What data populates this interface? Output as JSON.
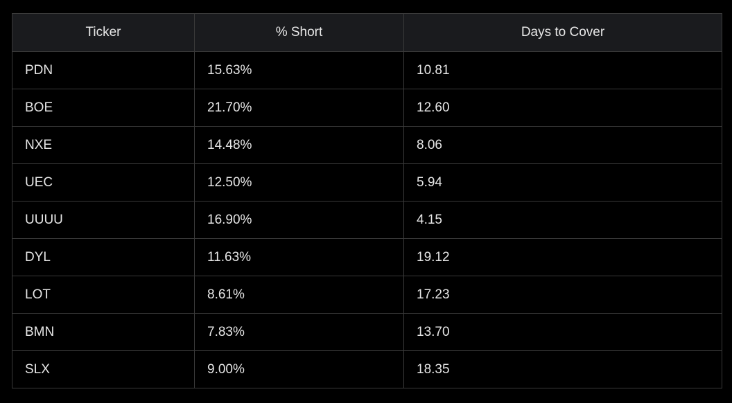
{
  "table": {
    "headers": [
      "Ticker",
      "% Short",
      "Days to Cover"
    ],
    "rows": [
      [
        "PDN",
        "15.63%",
        "10.81"
      ],
      [
        "BOE",
        "21.70%",
        "12.60"
      ],
      [
        "NXE",
        "14.48%",
        "8.06"
      ],
      [
        "UEC",
        "12.50%",
        "5.94"
      ],
      [
        "UUUU",
        "16.90%",
        "4.15"
      ],
      [
        "DYL",
        "11.63%",
        "19.12"
      ],
      [
        "LOT",
        "8.61%",
        "17.23"
      ],
      [
        "BMN",
        "7.83%",
        "13.70"
      ],
      [
        "SLX",
        "9.00%",
        "18.35"
      ]
    ]
  },
  "colors": {
    "background": "#000000",
    "header_background": "#1a1b1e",
    "border": "#3a3a3a",
    "text": "#e6e6e6"
  }
}
